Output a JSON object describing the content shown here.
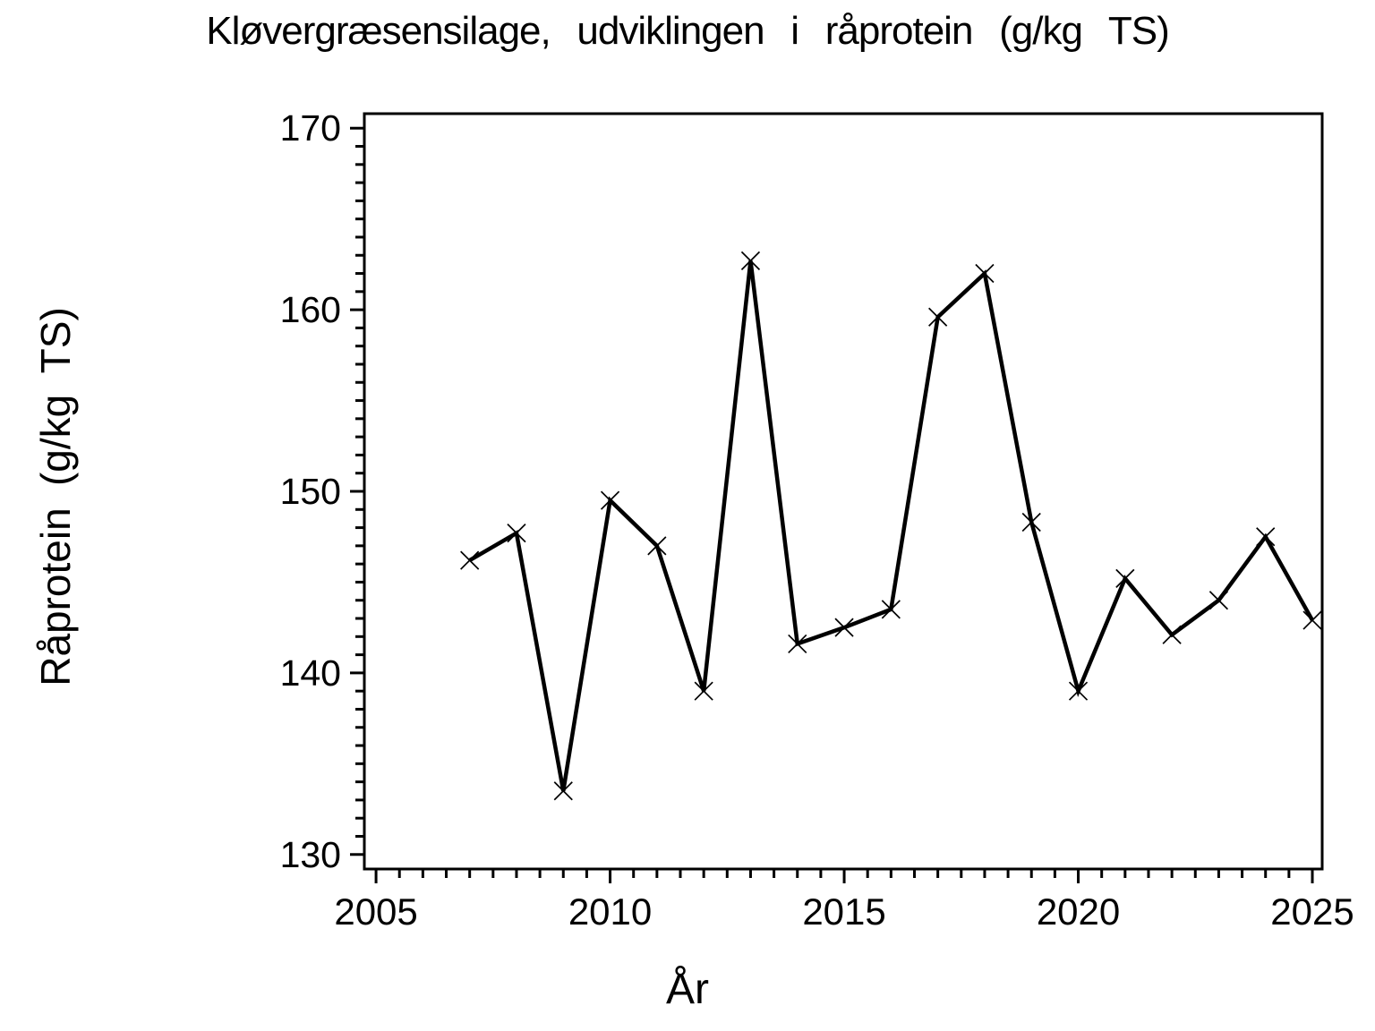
{
  "figure": {
    "background_color": "#ffffff",
    "foreground_color": "#000000"
  },
  "chart_data": {
    "type": "line",
    "title": "Kløvergræsensilage, udviklingen i råprotein (g/kg TS)",
    "xlabel": "År",
    "ylabel": "Råprotein (g/kg TS)",
    "series": [
      {
        "name": "råprotein",
        "x": [
          2007,
          2008,
          2009,
          2010,
          2011,
          2012,
          2013,
          2014,
          2015,
          2016,
          2017,
          2018,
          2019,
          2020,
          2021,
          2022,
          2023,
          2024,
          2025
        ],
        "values": [
          146.2,
          147.7,
          133.5,
          149.5,
          147.0,
          139.0,
          162.7,
          141.6,
          142.5,
          143.5,
          159.6,
          162.0,
          148.3,
          139.0,
          145.2,
          142.1,
          144.0,
          147.5,
          142.9
        ],
        "marker": "x",
        "color": "#000000"
      }
    ],
    "xlim": [
      2004.75,
      2025.21
    ],
    "ylim": [
      129.2,
      170.8
    ],
    "x_major_ticks": [
      2005,
      2010,
      2015,
      2020,
      2025
    ],
    "x_minor_tick_step": 0.5,
    "y_major_ticks": [
      130,
      140,
      150,
      160,
      170
    ],
    "y_minor_tick_step": 1,
    "grid": false,
    "legend_position": "none"
  }
}
